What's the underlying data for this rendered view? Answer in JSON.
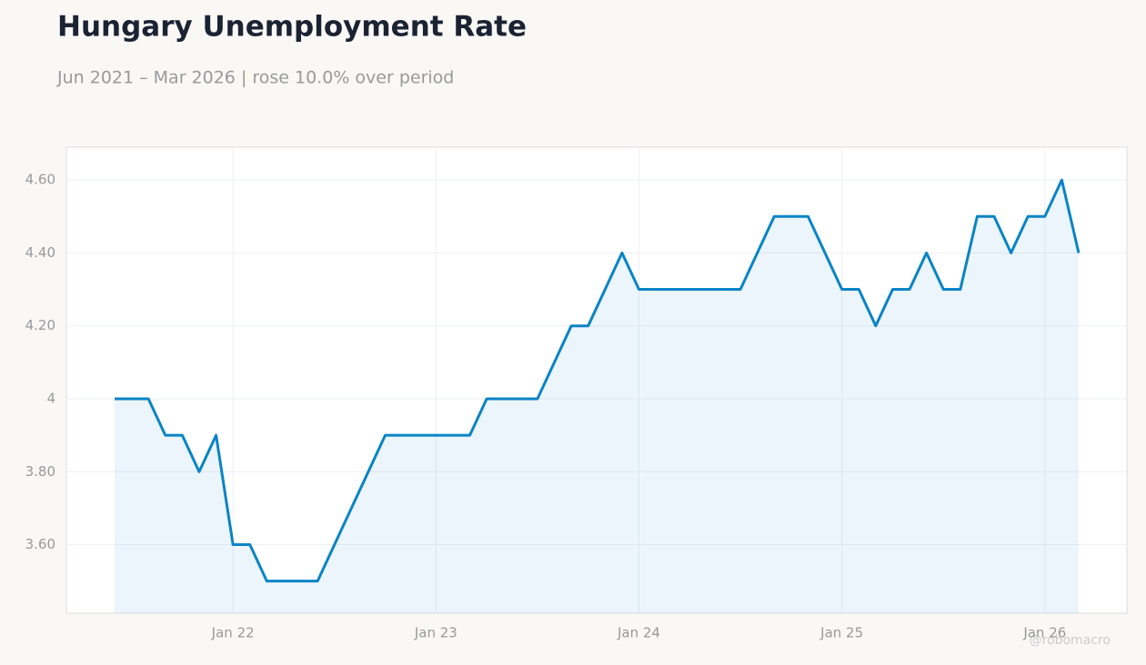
{
  "chart_data": {
    "type": "line",
    "title": "Hungary Unemployment Rate",
    "subtitle": "Jun 2021 – Mar 2026 | rose 10.0% over period",
    "watermark": "@robomacro",
    "x": [
      "2021-06",
      "2021-07",
      "2021-08",
      "2021-09",
      "2021-10",
      "2021-11",
      "2021-12",
      "2022-01",
      "2022-02",
      "2022-03",
      "2022-04",
      "2022-05",
      "2022-06",
      "2022-07",
      "2022-08",
      "2022-09",
      "2022-10",
      "2022-11",
      "2022-12",
      "2023-01",
      "2023-02",
      "2023-03",
      "2023-04",
      "2023-05",
      "2023-06",
      "2023-07",
      "2023-08",
      "2023-09",
      "2023-10",
      "2023-11",
      "2023-12",
      "2024-01",
      "2024-02",
      "2024-03",
      "2024-04",
      "2024-05",
      "2024-06",
      "2024-07",
      "2024-08",
      "2024-09",
      "2024-10",
      "2024-11",
      "2024-12",
      "2025-01",
      "2025-02",
      "2025-03",
      "2025-04",
      "2025-05",
      "2025-06",
      "2025-07",
      "2025-08",
      "2025-09",
      "2025-10",
      "2025-11",
      "2025-12",
      "2026-01",
      "2026-02",
      "2026-03"
    ],
    "series": [
      {
        "name": "Unemployment rate",
        "color": "#0a84c6",
        "values": [
          4.0,
          4.0,
          4.0,
          3.9,
          3.9,
          3.8,
          3.9,
          3.6,
          3.6,
          3.5,
          3.5,
          3.5,
          3.5,
          3.6,
          3.7,
          3.8,
          3.9,
          3.9,
          3.9,
          3.9,
          3.9,
          3.9,
          4.0,
          4.0,
          4.0,
          4.0,
          4.1,
          4.2,
          4.2,
          4.3,
          4.4,
          4.3,
          4.3,
          4.3,
          4.3,
          4.3,
          4.3,
          4.3,
          4.4,
          4.5,
          4.5,
          4.5,
          4.4,
          4.3,
          4.3,
          4.2,
          4.3,
          4.3,
          4.4,
          4.3,
          4.3,
          4.5,
          4.5,
          4.4,
          4.5,
          4.5,
          4.6,
          4.4
        ]
      }
    ],
    "ylim": [
      3.412,
      4.69
    ],
    "yticks": [
      {
        "value": 3.6,
        "label": "3.60"
      },
      {
        "value": 3.8,
        "label": "3.80"
      },
      4,
      {
        "value": 4.2,
        "label": "4.20"
      },
      {
        "value": 4.4,
        "label": "4.40"
      },
      {
        "value": 4.6,
        "label": "4.60"
      }
    ],
    "xticks": [
      {
        "value": "2022-01",
        "label": "Jan 22"
      },
      {
        "value": "2023-01",
        "label": "Jan 23"
      },
      {
        "value": "2024-01",
        "label": "Jan 24"
      },
      {
        "value": "2025-01",
        "label": "Jan 25"
      },
      {
        "value": "2026-01",
        "label": "Jan 26"
      }
    ],
    "grid": true
  }
}
